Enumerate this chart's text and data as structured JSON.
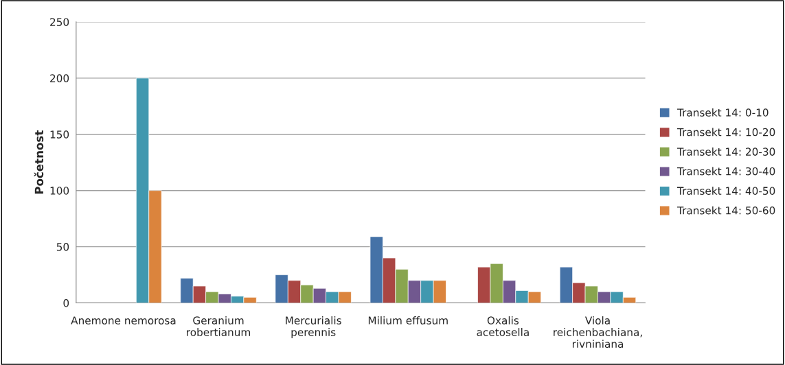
{
  "chart_data": {
    "type": "bar",
    "ylabel": "Početnost",
    "categories": [
      "Anemone nemorosa",
      "Geranium robertianum",
      "Mercurialis perennis",
      "Milium effusum",
      "Oxalis acetosella",
      "Viola reichenbachiana, rivniniana"
    ],
    "series": [
      {
        "name": "Transekt 14: 0-10",
        "color": "#4572a7",
        "values": [
          null,
          22,
          25,
          59,
          null,
          32
        ]
      },
      {
        "name": "Transekt 14: 10-20",
        "color": "#aa4643",
        "values": [
          null,
          15,
          20,
          40,
          32,
          18
        ]
      },
      {
        "name": "Transekt 14: 20-30",
        "color": "#89a54e",
        "values": [
          null,
          10,
          16,
          30,
          35,
          15
        ]
      },
      {
        "name": "Transekt 14: 30-40",
        "color": "#71588f",
        "values": [
          null,
          8,
          13,
          20,
          20,
          10
        ]
      },
      {
        "name": "Transekt 14: 40-50",
        "color": "#4198af",
        "values": [
          200,
          6,
          10,
          20,
          11,
          10
        ]
      },
      {
        "name": "Transekt 14: 50-60",
        "color": "#db843d",
        "values": [
          100,
          5,
          10,
          20,
          10,
          5
        ]
      }
    ],
    "ylim": [
      0,
      250
    ],
    "yticks": [
      0,
      50,
      100,
      150,
      200,
      250
    ],
    "grid": "y",
    "legend": "right"
  }
}
